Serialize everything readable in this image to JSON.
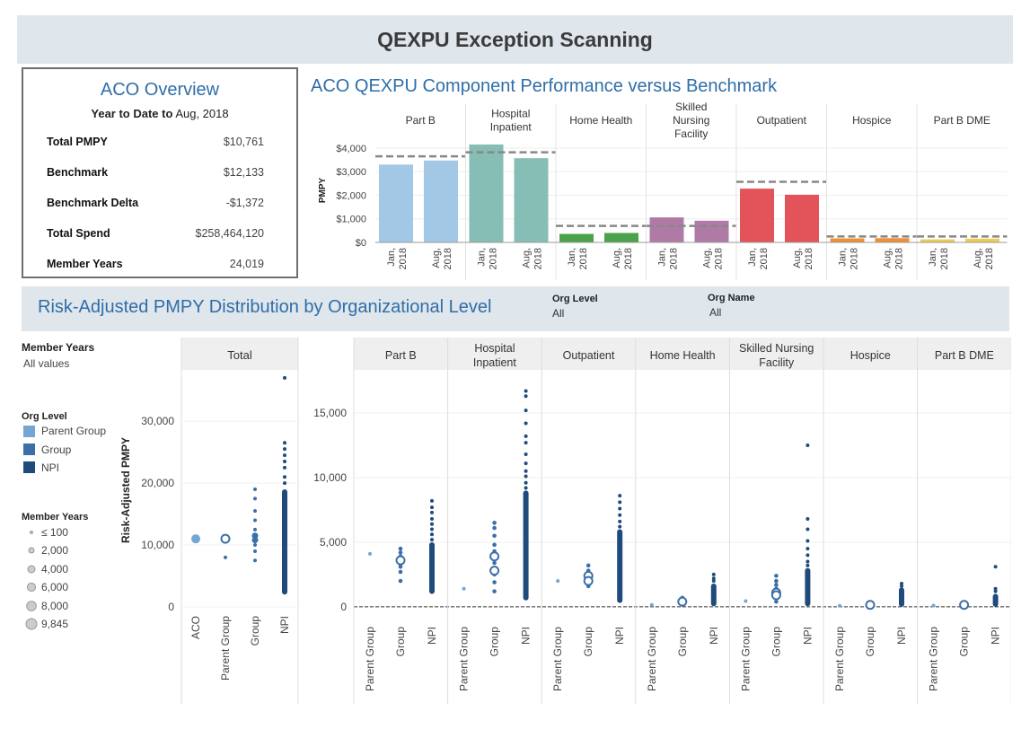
{
  "page": {
    "title": "QEXPU Exception Scanning"
  },
  "overview": {
    "title": "ACO Overview",
    "ytd_label": "Year to Date to",
    "ytd_value": "Aug, 2018",
    "metrics": [
      {
        "label": "Total PMPY",
        "value": "$10,761"
      },
      {
        "label": "Benchmark",
        "value": "$12,133"
      },
      {
        "label": "Benchmark Delta",
        "value": "-$1,372"
      },
      {
        "label": "Total Spend",
        "value": "$258,464,120"
      },
      {
        "label": "Member Years",
        "value": "24,019"
      }
    ]
  },
  "component_chart": {
    "title": "ACO QEXPU Component Performance versus Benchmark",
    "colors": {
      "Part B": "#a3c8e6",
      "Hospital Inpatient": "#86beb5",
      "Home Health": "#4aa34a",
      "Skilled Nursing Facility": "#b07aa6",
      "Outpatient": "#e2545a",
      "Hospice": "#ef8e36",
      "Part B DME": "#eccc55",
      "benchmark": "#888888"
    }
  },
  "distribution": {
    "title": "Risk-Adjusted PMPY Distribution by Organizational Level",
    "filters": [
      {
        "label": "Org Level",
        "value": "All"
      },
      {
        "label": "Org Name",
        "value": "All"
      }
    ]
  },
  "legend": {
    "member_years_filter": {
      "label": "Member Years",
      "value": "All values"
    },
    "org_level": {
      "title": "Org Level",
      "items": [
        {
          "label": "Parent Group",
          "color": "#73a6d3"
        },
        {
          "label": "Group",
          "color": "#3c6fa8"
        },
        {
          "label": "NPI",
          "color": "#1f4b7c"
        }
      ]
    },
    "member_years_size": {
      "title": "Member Years",
      "items": [
        "≤ 100",
        "2,000",
        "4,000",
        "6,000",
        "8,000",
        "9,845"
      ]
    }
  },
  "chart_data": [
    {
      "type": "bar",
      "title": "ACO QEXPU Component Performance versus Benchmark",
      "ylabel": "PMPY",
      "ylim": [
        0,
        4300
      ],
      "yticks": [
        "$0",
        "$1,000",
        "$2,000",
        "$3,000",
        "$4,000"
      ],
      "categories": [
        "Part B",
        "Hospital Inpatient",
        "Home Health",
        "Skilled Nursing Facility",
        "Outpatient",
        "Hospice",
        "Part B DME"
      ],
      "periods": [
        "Jan, 2018",
        "Aug, 2018"
      ],
      "series": [
        {
          "name": "Jan, 2018",
          "values": [
            3300,
            4150,
            360,
            1060,
            2280,
            170,
            130
          ]
        },
        {
          "name": "Aug, 2018",
          "values": [
            3470,
            3570,
            400,
            920,
            2020,
            180,
            160
          ]
        }
      ],
      "benchmark": [
        3650,
        3820,
        700,
        700,
        2570,
        250,
        250
      ]
    },
    {
      "type": "scatter",
      "title": "Total",
      "ylabel": "Risk-Adjusted PMPY",
      "ylim": [
        0,
        38000
      ],
      "yticks": [
        "0",
        "10,000",
        "20,000",
        "30,000"
      ],
      "categories": [
        "ACO",
        "Parent Group",
        "Group",
        "NPI"
      ],
      "points": [
        {
          "cat": "ACO",
          "y": 11000,
          "level": "Parent Group",
          "size": 9845
        },
        {
          "cat": "Parent Group",
          "y": 11000,
          "level": "Group",
          "size": 8000
        },
        {
          "cat": "Parent Group",
          "y": 8000,
          "level": "Group",
          "size": 100
        },
        {
          "cat": "Group",
          "y": 19000,
          "level": "Group",
          "size": 100
        },
        {
          "cat": "Group",
          "y": 17500,
          "level": "Group",
          "size": 100
        },
        {
          "cat": "Group",
          "y": 15500,
          "level": "Group",
          "size": 100
        },
        {
          "cat": "Group",
          "y": 14000,
          "level": "Group",
          "size": 100
        },
        {
          "cat": "Group",
          "y": 12500,
          "level": "Group",
          "size": 100
        },
        {
          "cat": "Group",
          "y": 11500,
          "level": "Group",
          "size": 2000
        },
        {
          "cat": "Group",
          "y": 10800,
          "level": "Group",
          "size": 2000
        },
        {
          "cat": "Group",
          "y": 10000,
          "level": "Group",
          "size": 100
        },
        {
          "cat": "Group",
          "y": 9000,
          "level": "Group",
          "size": 100
        },
        {
          "cat": "Group",
          "y": 7500,
          "level": "Group",
          "size": 100
        },
        {
          "cat": "NPI",
          "y": 37000,
          "level": "NPI",
          "size": 100
        },
        {
          "cat": "NPI",
          "y": 26500,
          "level": "NPI",
          "size": 100
        },
        {
          "cat": "NPI",
          "y": 25500,
          "level": "NPI",
          "size": 100
        },
        {
          "cat": "NPI",
          "y": 24500,
          "level": "NPI",
          "size": 100
        },
        {
          "cat": "NPI",
          "y": 23500,
          "level": "NPI",
          "size": 100
        },
        {
          "cat": "NPI",
          "y": 22500,
          "level": "NPI",
          "size": 100
        },
        {
          "cat": "NPI",
          "y": 21000,
          "level": "NPI",
          "size": 100
        },
        {
          "cat": "NPI",
          "y": 20000,
          "level": "NPI",
          "size": 100
        }
      ],
      "band": [
        {
          "cat": "NPI",
          "from": 2000,
          "to": 19000
        }
      ]
    },
    {
      "type": "scatter",
      "ylabel": "",
      "ylim": [
        -700,
        17500
      ],
      "yticks": [
        "0",
        "5,000",
        "10,000",
        "15,000"
      ],
      "categories": [
        "Part B",
        "Hospital Inpatient",
        "Outpatient",
        "Home Health",
        "Skilled Nursing Facility",
        "Hospice",
        "Part B DME"
      ],
      "subcategories": [
        "Parent Group",
        "Group",
        "NPI"
      ],
      "panels": [
        {
          "name": "Part B",
          "parent": [
            4100
          ],
          "group": [
            4500,
            4200,
            3900,
            3700,
            3600,
            3500,
            3300,
            3100,
            2700,
            2000
          ],
          "group_big": [
            3600
          ],
          "npi_top": [
            8200,
            7700,
            7300,
            6800,
            6400,
            6000,
            5600,
            5200
          ],
          "npi_band": [
            1000,
            5000
          ]
        },
        {
          "name": "Hospital Inpatient",
          "parent": [
            1400
          ],
          "group": [
            6500,
            6100,
            5500,
            4800,
            4300,
            3400,
            2500,
            1900,
            1200
          ],
          "group_big": [
            3900,
            2800
          ],
          "npi_top": [
            16700,
            16300,
            15200,
            14200,
            13200,
            12700,
            11800,
            11100,
            10500,
            10100,
            9600,
            9200
          ],
          "npi_band": [
            500,
            9000
          ]
        },
        {
          "name": "Outpatient",
          "parent": [
            2000
          ],
          "group": [
            3200,
            2800,
            1900,
            1600
          ],
          "group_big": [
            2400,
            2000
          ],
          "npi_top": [
            8600,
            8100,
            7600,
            7100,
            6600,
            6200
          ],
          "npi_band": [
            300,
            6000
          ]
        },
        {
          "name": "Home Health",
          "parent": [
            150
          ],
          "group": [
            700,
            500,
            300,
            200
          ],
          "group_big": [
            400
          ],
          "npi_top": [
            2500,
            2200,
            2000
          ],
          "npi_band": [
            50,
            1800
          ]
        },
        {
          "name": "Skilled Nursing Facility",
          "parent": [
            450
          ],
          "group": [
            2400,
            2000,
            1700,
            1400,
            700,
            400
          ],
          "group_big": [
            1100,
            900
          ],
          "npi_top": [
            12500,
            6800,
            6000,
            5100,
            4500,
            4000,
            3500,
            3200
          ],
          "npi_band": [
            50,
            3000
          ]
        },
        {
          "name": "Hospice",
          "parent": [
            80
          ],
          "group": [
            200,
            150
          ],
          "group_big": [
            150
          ],
          "npi_top": [
            1800,
            1600
          ],
          "npi_band": [
            0,
            1500
          ]
        },
        {
          "name": "Part B DME",
          "parent": [
            100
          ],
          "group": [
            250,
            150
          ],
          "group_big": [
            150
          ],
          "npi_top": [
            3100,
            1400,
            1200
          ],
          "npi_band": [
            0,
            1000
          ]
        }
      ]
    }
  ]
}
